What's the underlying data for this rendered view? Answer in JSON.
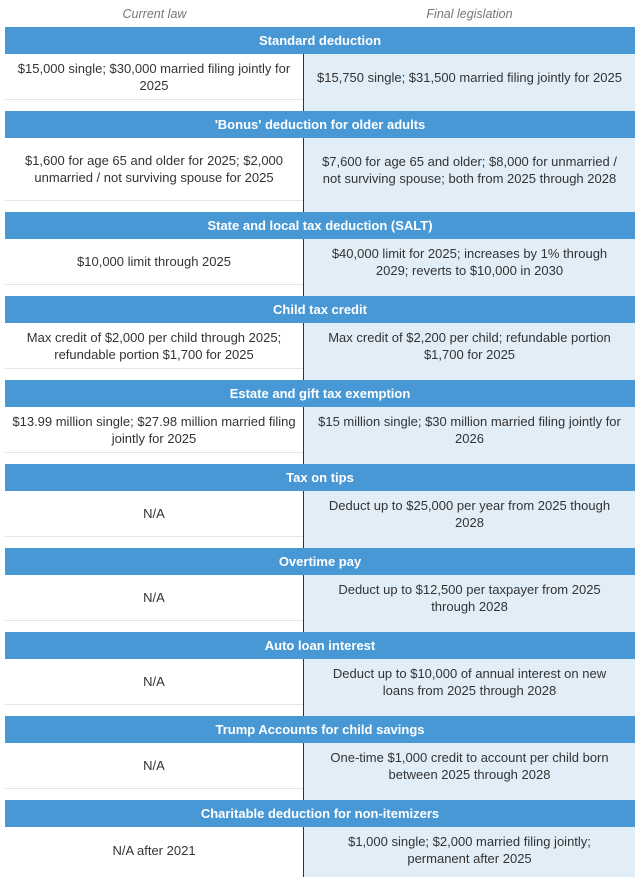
{
  "columns": {
    "current": "Current law",
    "final": "Final legislation"
  },
  "colors": {
    "header": "#4898d5",
    "final_bg": "#e1eef8"
  },
  "sections": [
    {
      "title": "Standard deduction",
      "current": "$15,000 single; $30,000 married filing jointly for 2025",
      "final": "$15,750 single; $31,500 married filing jointly for 2025"
    },
    {
      "title": "'Bonus' deduction for older adults",
      "current": "$1,600 for age 65 and older for 2025; $2,000 unmarried / not surviving spouse for 2025",
      "final": "$7,600 for age 65 and older; $8,000 for unmarried / not surviving spouse; both from 2025 through 2028"
    },
    {
      "title": "State and local tax deduction (SALT)",
      "current": "$10,000 limit through 2025",
      "final": "$40,000 limit for 2025; increases by 1% through 2029; reverts to $10,000 in 2030"
    },
    {
      "title": "Child tax credit",
      "current": "Max credit of $2,000 per child through 2025; refundable portion $1,700 for 2025",
      "final": "Max credit of $2,200 per child; refundable portion $1,700 for 2025"
    },
    {
      "title": "Estate and gift tax exemption",
      "current": "$13.99 million single; $27.98 million married filing jointly for 2025",
      "final": "$15 million single; $30 million married filing jointly for 2026"
    },
    {
      "title": "Tax on tips",
      "current": "N/A",
      "final": "Deduct up to $25,000 per year from 2025 though 2028"
    },
    {
      "title": "Overtime pay",
      "current": "N/A",
      "final": "Deduct up to $12,500 per taxpayer from 2025 through 2028"
    },
    {
      "title": "Auto loan interest",
      "current": "N/A",
      "final": "Deduct up to $10,000 of annual interest on new loans from 2025 through 2028"
    },
    {
      "title": "Trump Accounts for child savings",
      "current": "N/A",
      "final": "One-time $1,000 credit to account per child born between 2025 through 2028"
    },
    {
      "title": "Charitable deduction for non-itemizers",
      "current": "N/A after 2021",
      "final": "$1,000 single; $2,000 married filing jointly; permanent after 2025"
    }
  ]
}
